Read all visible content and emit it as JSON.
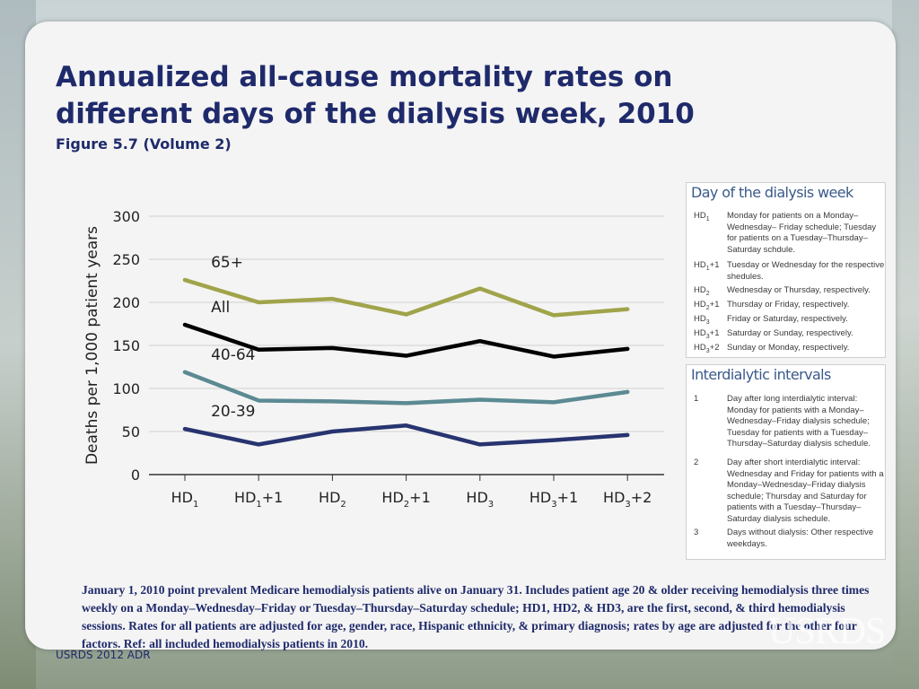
{
  "header": {
    "title": "Annualized all-cause mortality rates on different days of the dialysis week, 2010",
    "subtitle": "Figure 5.7 (Volume 2)"
  },
  "chart_data": {
    "type": "line",
    "title": "",
    "xlabel": "",
    "ylabel": "Deaths per 1,000 patient years",
    "ylim": [
      0,
      300
    ],
    "yticks": [
      0,
      50,
      100,
      150,
      200,
      250,
      300
    ],
    "categories": [
      {
        "base": "HD",
        "sub": "1",
        "suffix": ""
      },
      {
        "base": "HD",
        "sub": "1",
        "suffix": "+1"
      },
      {
        "base": "HD",
        "sub": "2",
        "suffix": ""
      },
      {
        "base": "HD",
        "sub": "2",
        "suffix": "+1"
      },
      {
        "base": "HD",
        "sub": "3",
        "suffix": ""
      },
      {
        "base": "HD",
        "sub": "3",
        "suffix": "+1"
      },
      {
        "base": "HD",
        "sub": "3",
        "suffix": "+2"
      }
    ],
    "series": [
      {
        "name": "65+",
        "color": "#a0a44a",
        "values": [
          226,
          200,
          204,
          186,
          216,
          185,
          192
        ]
      },
      {
        "name": "All",
        "color": "#000000",
        "values": [
          174,
          145,
          147,
          138,
          155,
          137,
          146
        ]
      },
      {
        "name": "40-64",
        "color": "#5b8a93",
        "values": [
          119,
          86,
          85,
          83,
          87,
          84,
          96
        ]
      },
      {
        "name": "20-39",
        "color": "#283470",
        "values": [
          53,
          35,
          50,
          57,
          35,
          40,
          46
        ]
      }
    ]
  },
  "legend_days": {
    "title": "Day of the dialysis week",
    "rows": [
      {
        "key": "HD1",
        "text": "Monday for patients on a Monday–Wednesday– Friday schedule; Tuesday for patients on a Tuesday–Thursday–Saturday schdule."
      },
      {
        "key": "HD1+1",
        "text": "Tuesday or Wednesday for the respective shedules."
      },
      {
        "key": "HD2",
        "text": "Wednesday or Thursday, respectively."
      },
      {
        "key": "HD2+1",
        "text": "Thursday or Friday, respectively."
      },
      {
        "key": "HD3",
        "text": "Friday or Saturday, respectively."
      },
      {
        "key": "HD3+1",
        "text": "Saturday or Sunday, respectively."
      },
      {
        "key": "HD3+2",
        "text": "Sunday or Monday, respectively."
      }
    ]
  },
  "legend_intervals": {
    "title": "Interdialytic intervals",
    "rows": [
      {
        "key": "1",
        "text": "Day after long interdialytic interval: Monday for patients with a Monday–Wednesday–Friday dialysis schedule; Tuesday for patients with a Tuesday–Thursday–Saturday dialysis schedule."
      },
      {
        "key": "2",
        "text": "Day after short interdialytic interval: Wednesday and Friday for patients with a Monday–Wednesday–Friday dialysis schedule; Thursday and Saturday for patients with a Tuesday–Thursday–Saturday dialysis schedule."
      },
      {
        "key": "3",
        "text": "Days without dialysis: Other respective weekdays."
      }
    ]
  },
  "note": "January 1, 2010 point prevalent Medicare hemodialysis patients alive on January 31. Includes patient age 20 & older receiving hemodialysis three times weekly on a Monday–Wednesday–Friday or Tuesday–Thursday–Saturday schedule; HD1, HD2, & HD3, are the first, second, & third hemodialysis sessions. Rates for all patients are adjusted for age, gender, race, Hispanic ethnicity, & primary diagnosis; rates by age are adjusted for the other four factors. Ref: all included hemodialysis patients in 2010.",
  "footer": "USRDS 2012 ADR",
  "logo": "USRDS"
}
